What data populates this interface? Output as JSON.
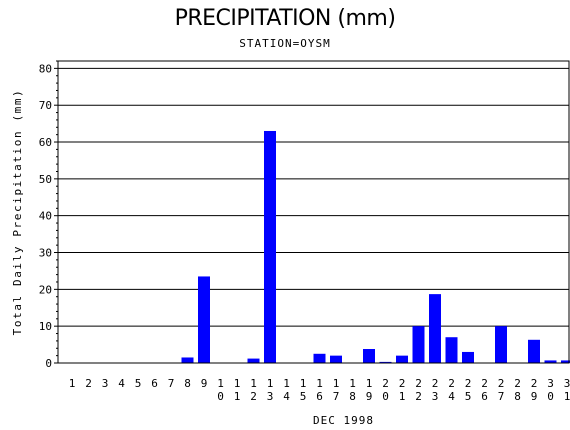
{
  "chart_data": {
    "type": "bar",
    "title": "PRECIPITATION (mm)",
    "subtitle": "STATION=OYSM",
    "xlabel": "DEC 1998",
    "ylabel": "Total Daily Precipitation (mm)",
    "ylim": [
      0,
      82
    ],
    "yticks": [
      0,
      10,
      20,
      30,
      40,
      50,
      60,
      70,
      80
    ],
    "grid": "horizontal",
    "categories": [
      "1",
      "2",
      "3",
      "4",
      "5",
      "6",
      "7",
      "8",
      "9",
      "10",
      "11",
      "12",
      "13",
      "14",
      "15",
      "16",
      "17",
      "18",
      "19",
      "20",
      "21",
      "22",
      "23",
      "24",
      "25",
      "26",
      "27",
      "28",
      "29",
      "30",
      "31"
    ],
    "values": [
      0,
      0,
      0,
      0,
      0,
      0,
      0,
      1.5,
      23.5,
      0,
      0,
      1.2,
      63,
      0,
      0,
      2.5,
      2,
      0,
      3.8,
      0.3,
      2,
      10,
      18.7,
      7,
      3,
      0,
      10,
      0,
      6.3,
      0.7,
      0.7
    ],
    "bar_color": "#0000ff"
  }
}
